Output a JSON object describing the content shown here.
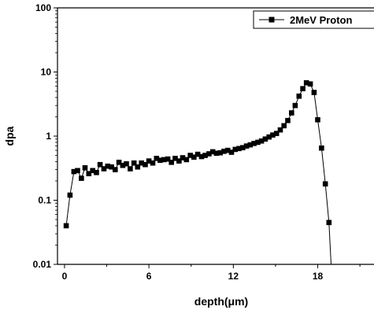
{
  "chart_data": {
    "type": "line",
    "xlabel": "depth(μm)",
    "ylabel": "dpa",
    "xscale": "linear",
    "yscale": "log",
    "xlim": [
      -0.5,
      22
    ],
    "ylim": [
      0.01,
      100
    ],
    "xticks": [
      0,
      6,
      12,
      18
    ],
    "xtick_labels": [
      "0",
      "6",
      "12",
      "18"
    ],
    "yticks": [
      0.01,
      0.1,
      1,
      10,
      100
    ],
    "ytick_labels": [
      "0.01",
      "0.1",
      "1",
      "10",
      "100"
    ],
    "grid": false,
    "legend": "top-right",
    "series": [
      {
        "name": "2MeV Proton",
        "marker": "square",
        "color": "#000000",
        "x": [
          0.12,
          0.39,
          0.67,
          0.93,
          1.2,
          1.46,
          1.73,
          2.0,
          2.27,
          2.53,
          2.8,
          3.07,
          3.34,
          3.6,
          3.87,
          4.14,
          4.4,
          4.67,
          4.94,
          5.2,
          5.47,
          5.74,
          6.0,
          6.27,
          6.54,
          6.8,
          7.07,
          7.34,
          7.6,
          7.87,
          8.14,
          8.4,
          8.67,
          8.94,
          9.2,
          9.47,
          9.74,
          10.0,
          10.27,
          10.54,
          10.8,
          11.07,
          11.34,
          11.6,
          11.87,
          12.14,
          12.4,
          12.67,
          12.94,
          13.2,
          13.47,
          13.74,
          14.0,
          14.27,
          14.54,
          14.8,
          15.07,
          15.34,
          15.6,
          15.87,
          16.14,
          16.4,
          16.67,
          16.94,
          17.2,
          17.47,
          17.74,
          18.0,
          18.27,
          18.54,
          18.8
        ],
        "y": [
          0.04,
          0.12,
          0.28,
          0.29,
          0.22,
          0.32,
          0.26,
          0.29,
          0.27,
          0.36,
          0.31,
          0.34,
          0.33,
          0.3,
          0.39,
          0.35,
          0.37,
          0.31,
          0.38,
          0.33,
          0.38,
          0.36,
          0.41,
          0.38,
          0.45,
          0.42,
          0.43,
          0.44,
          0.39,
          0.45,
          0.41,
          0.46,
          0.43,
          0.5,
          0.47,
          0.52,
          0.48,
          0.5,
          0.53,
          0.57,
          0.54,
          0.55,
          0.58,
          0.6,
          0.56,
          0.62,
          0.64,
          0.66,
          0.7,
          0.73,
          0.77,
          0.8,
          0.84,
          0.9,
          0.97,
          1.04,
          1.1,
          1.25,
          1.45,
          1.75,
          2.3,
          3.0,
          4.2,
          5.5,
          6.8,
          6.5,
          4.8,
          1.8,
          0.65,
          0.18,
          0.045
        ]
      }
    ]
  }
}
